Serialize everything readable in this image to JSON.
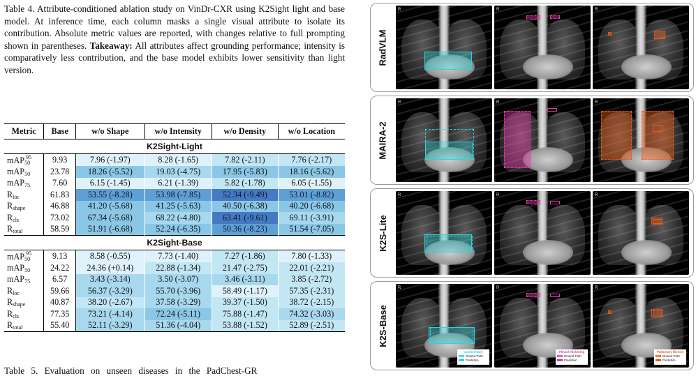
{
  "caption": {
    "text": "Table 4. Attribute-conditioned ablation study on VinDr-CXR using K2Sight light and base model. At inference time, each column masks a single visual attribute to isolate its contribution. Absolute metric values are reported, with changes relative to full prompting shown in parentheses.",
    "takeaway_label": "Takeaway:",
    "takeaway_text": "All attributes affect grounding performance; intensity is comparatively less contribution, and the base model exhibits lower sensitivity than light version."
  },
  "table": {
    "headers": [
      "Metric",
      "Base",
      "w/o Shape",
      "w/o Intensity",
      "w/o Density",
      "w/o Location"
    ],
    "sections": [
      {
        "title": "K2Sight-Light",
        "rows": [
          {
            "m": "mAP",
            "sub": "50",
            "sup": "95",
            "base": "9.93",
            "cells": [
              "7.96 (-1.97)",
              "8.28 (-1.65)",
              "7.82 (-2.11)",
              "7.76 (-2.17)"
            ],
            "shade": [
              0,
              0,
              1,
              1
            ]
          },
          {
            "m": "mAP",
            "sub": "50",
            "sup": "",
            "base": "23.78",
            "cells": [
              "18.26 (-5.52)",
              "19.03 (-4.75)",
              "17.95 (-5.83)",
              "18.16 (-5.62)"
            ],
            "shade": [
              3,
              2,
              3,
              3
            ]
          },
          {
            "m": "mAP",
            "sub": "75",
            "sup": "",
            "base": "7.60",
            "cells": [
              "6.15 (-1.45)",
              "6.21 (-1.39)",
              "5.82 (-1.78)",
              "6.05 (-1.55)"
            ],
            "shade": [
              0,
              0,
              1,
              0
            ]
          },
          {
            "m": "R",
            "sub": "loc",
            "sup": "",
            "base": "61.83",
            "cells": [
              "53.55 (-8.28)",
              "53.98 (-7.85)",
              "52.34 (-9.49)",
              "53.01 (-8.82)"
            ],
            "shade": [
              4,
              4,
              5,
              4
            ]
          },
          {
            "m": "R",
            "sub": "shape",
            "sup": "",
            "base": "46.88",
            "cells": [
              "41.20 (-5.68)",
              "41.25 (-5.63)",
              "40.50 (-6.38)",
              "40.20 (-6.68)"
            ],
            "shade": [
              3,
              3,
              3,
              3
            ]
          },
          {
            "m": "R",
            "sub": "cls",
            "sup": "",
            "base": "73.02",
            "cells": [
              "67.34 (-5.68)",
              "68.22 (-4.80)",
              "63.41 (-9.61)",
              "69.11 (-3.91)"
            ],
            "shade": [
              3,
              2,
              5,
              2
            ]
          },
          {
            "m": "R",
            "sub": "total",
            "sup": "",
            "base": "58.59",
            "cells": [
              "51.91 (-6.68)",
              "52.24 (-6.35)",
              "50.36 (-8.23)",
              "51.54 (-7.05)"
            ],
            "shade": [
              3,
              3,
              4,
              3
            ]
          }
        ]
      },
      {
        "title": "K2Sight-Base",
        "rows": [
          {
            "m": "mAP",
            "sub": "50",
            "sup": "95",
            "base": "9.13",
            "cells": [
              "8.58 (-0.55)",
              "7.73 (-1.40)",
              "7.27 (-1.86)",
              "7.80 (-1.33)"
            ],
            "shade": [
              0,
              0,
              1,
              0
            ]
          },
          {
            "m": "mAP",
            "sub": "50",
            "sup": "",
            "base": "24.22",
            "cells": [
              "24.36 (+0.14)",
              "22.88 (-1.34)",
              "21.47 (-2.75)",
              "22.01 (-2.21)"
            ],
            "shade": [
              0,
              1,
              1,
              1
            ]
          },
          {
            "m": "mAP",
            "sub": "75",
            "sup": "",
            "base": "6.57",
            "cells": [
              "3.43 (-3.14)",
              "3.50 (-3.07)",
              "3.46 (-3.11)",
              "3.85 (-2.72)"
            ],
            "shade": [
              2,
              2,
              2,
              1
            ]
          },
          {
            "m": "R",
            "sub": "loc",
            "sup": "",
            "base": "59.66",
            "cells": [
              "56.37 (-3.29)",
              "55.70 (-3.96)",
              "58.49 (-1.17)",
              "57.35 (-2.31)"
            ],
            "shade": [
              2,
              2,
              0,
              1
            ]
          },
          {
            "m": "R",
            "sub": "shape",
            "sup": "",
            "base": "40.87",
            "cells": [
              "38.20 (-2.67)",
              "37.58 (-3.29)",
              "39.37 (-1.50)",
              "38.72 (-2.15)"
            ],
            "shade": [
              1,
              2,
              1,
              1
            ]
          },
          {
            "m": "R",
            "sub": "cls",
            "sup": "",
            "base": "77.35",
            "cells": [
              "73.21 (-4.14)",
              "72.24 (-5.11)",
              "75.88 (-1.47)",
              "74.32 (-3.03)"
            ],
            "shade": [
              2,
              3,
              1,
              2
            ]
          },
          {
            "m": "R",
            "sub": "total",
            "sup": "",
            "base": "55.40",
            "cells": [
              "52.11 (-3.29)",
              "51.36 (-4.04)",
              "53.88 (-1.52)",
              "52.89 (-2.51)"
            ],
            "shade": [
              2,
              2,
              1,
              1
            ]
          }
        ]
      }
    ]
  },
  "table5_start": "Table 5.   Evaluation on unseen diseases in the PadChest-GR",
  "figure": {
    "rows": [
      "RadVLM",
      "MAIRA-2",
      "K2S-Lite",
      "K2S-Base"
    ],
    "legends": [
      {
        "title": "Cardiomegaly",
        "gt": "Ground Truth",
        "pred": "Prediction"
      },
      {
        "title": "Pleural thickening",
        "gt": "Ground Truth",
        "pred": "Prediction"
      },
      {
        "title": "Pulmonary fibrosis",
        "gt": "Ground Truth",
        "pred": "Prediction"
      }
    ],
    "side_marker": "R"
  },
  "colors": {
    "shade": [
      "#dff2fb",
      "#c3e6f5",
      "#a7d8ee",
      "#8ac7e6",
      "#5e9fd6",
      "#4579c2"
    ],
    "cyan": "#27d6dd",
    "pink": "#e23aa6",
    "orange": "#ea5b17"
  }
}
